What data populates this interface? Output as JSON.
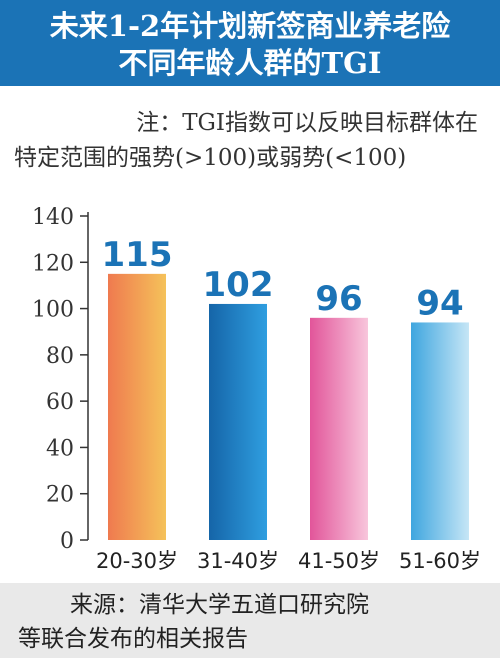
{
  "header": {
    "title_line1": "未来1-2年计划新签商业养老险",
    "title_line2": "不同年龄人群的TGI"
  },
  "note": {
    "line1": "注：TGI指数可以反映目标群体在",
    "line2": "特定范围的强势(>100)或弱势(<100)"
  },
  "footer": {
    "line1": "来源：清华大学五道口研究院",
    "line2": "等联合发布的相关报告"
  },
  "chart_data": {
    "type": "bar",
    "categories": [
      "20-30岁",
      "31-40岁",
      "41-50岁",
      "51-60岁"
    ],
    "values": [
      115,
      102,
      96,
      94
    ],
    "ylim": [
      0,
      140
    ],
    "yticks": [
      0,
      20,
      40,
      60,
      80,
      100,
      120,
      140
    ],
    "grid": false,
    "data_labels": [
      "115",
      "102",
      "96",
      "94"
    ],
    "colors": {
      "bar_gradients": [
        [
          "#ef7a4f",
          "#f5c25a"
        ],
        [
          "#1565a8",
          "#2f9ee0"
        ],
        [
          "#e2559a",
          "#f8c6dc"
        ],
        [
          "#3fa6df",
          "#c6e6f6"
        ]
      ],
      "label": "#1b73b6",
      "axis": "#333333"
    }
  }
}
